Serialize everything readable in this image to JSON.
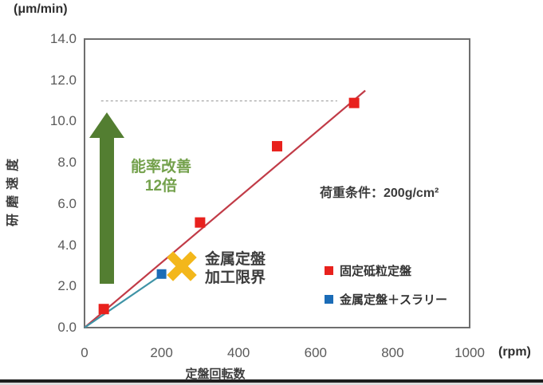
{
  "chart_data": {
    "type": "scatter",
    "title": "",
    "xlabel": "定盤回転数",
    "ylabel": "研磨速度",
    "x_unit_label": "(rpm)",
    "y_unit_label": "(μm/min)",
    "xlim": [
      0,
      1000
    ],
    "ylim": [
      0,
      14
    ],
    "x_ticks": [
      "0",
      "200",
      "400",
      "600",
      "800",
      "1000"
    ],
    "y_ticks": [
      "0.0",
      "2.0",
      "4.0",
      "6.0",
      "8.0",
      "10.0",
      "12.0",
      "14.0"
    ],
    "grid": false,
    "legend_position": "inside-right",
    "series": [
      {
        "name": "固定砥粒定盤",
        "marker": "square",
        "marker_color": "#e8211d",
        "marker_size": 13,
        "points": [
          [
            50,
            0.9
          ],
          [
            300,
            5.1
          ],
          [
            500,
            8.8
          ],
          [
            700,
            10.9
          ]
        ],
        "trendline": {
          "from": [
            0,
            0
          ],
          "to": [
            729,
            11.5
          ],
          "color": "#c13b47"
        }
      },
      {
        "name": "金属定盤＋スラリー",
        "marker": "square",
        "marker_color": "#1b6cb7",
        "marker_size": 12,
        "points": [
          [
            200,
            2.6
          ]
        ],
        "trendline": {
          "from": [
            0,
            0
          ],
          "to": [
            207,
            2.65
          ],
          "color": "#3f93a6"
        }
      }
    ],
    "reference_line": {
      "y": 11.0,
      "x_from": 43,
      "x_to": 656,
      "style": "dashed",
      "color": "#ababab"
    }
  },
  "annotations": {
    "improvement": {
      "line1": "能率改善",
      "line2": "12倍",
      "text_color": "#74a14c",
      "arrow_color": "#537e31"
    },
    "limit": {
      "line1": "金属定盤",
      "line2": "加工限界",
      "x_color": "#f3b71b"
    },
    "condition": "荷重条件：200g/cm²"
  },
  "legend": {
    "items": [
      {
        "label": "固定砥粒定盤",
        "color": "#e8211d"
      },
      {
        "label": "金属定盤＋スラリー",
        "color": "#1b6cb7"
      }
    ]
  }
}
